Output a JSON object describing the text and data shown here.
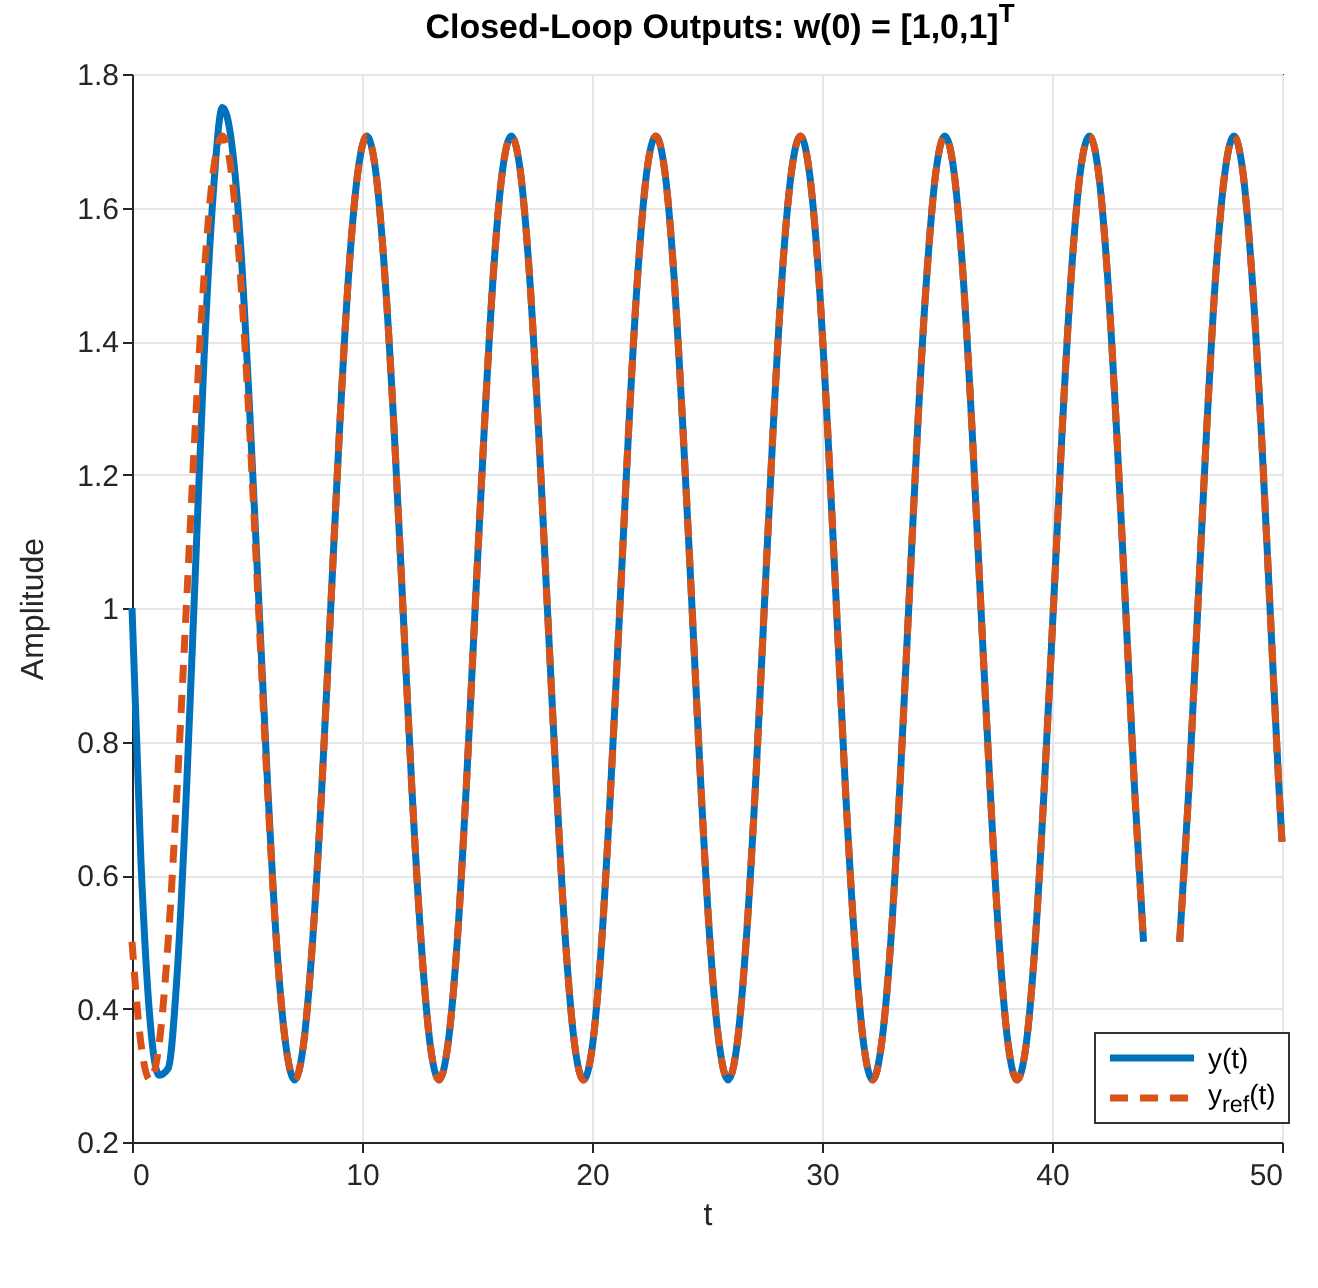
{
  "chart_data": {
    "type": "line",
    "title": "Closed-Loop Outputs: w(0) = [1,0,1]$^{T}$",
    "xlabel": "t",
    "ylabel": "Amplitude",
    "x": [
      0,
      0.39,
      0.79,
      1.18,
      1.57,
      1.96,
      2.36,
      2.75,
      3.14,
      3.53,
      3.93,
      4.32,
      4.71,
      5.11,
      5.5,
      5.89,
      6.28,
      6.68,
      7.07,
      7.46,
      7.85,
      8.25,
      8.64,
      9.03,
      9.42,
      9.82,
      10.21,
      10.6,
      10.99,
      11.39,
      11.78,
      12.17,
      12.57,
      12.96,
      13.35,
      13.74,
      14.14,
      14.53,
      14.92,
      15.32,
      15.71,
      16.1,
      16.49,
      16.89,
      17.28,
      17.67,
      18.06,
      18.46,
      18.85,
      19.24,
      19.63,
      20.03,
      20.42,
      20.81,
      21.21,
      21.6,
      21.99,
      22.38,
      22.78,
      23.17,
      23.56,
      23.95,
      24.35,
      24.74,
      25.13,
      25.53,
      25.92,
      26.31,
      26.7,
      27.1,
      27.49,
      27.88,
      28.27,
      28.67,
      29.06,
      29.45,
      29.85,
      30.24,
      30.63,
      31.02,
      31.42,
      31.81,
      32.2,
      32.59,
      32.99,
      33.38,
      33.77,
      34.16,
      34.56,
      34.95,
      35.34,
      35.74,
      36.13,
      36.52,
      36.91,
      37.31,
      37.7,
      38.09,
      38.48,
      38.88,
      39.27,
      39.66,
      40.06,
      40.45,
      40.84,
      41.23,
      41.63,
      42.02,
      42.41,
      42.8,
      43.2,
      43.59,
      43.98,
      44.37,
      44.77,
      45.16,
      45.55,
      45.95,
      46.34,
      46.73,
      47.12,
      47.52,
      47.91,
      48.3,
      48.69,
      49.09,
      49.48,
      49.87,
      50
    ],
    "series": [
      {
        "name": "y(t)",
        "color": "#0072bd",
        "line_style": "solid",
        "values": [
          1.0,
          0.62,
          0.38,
          0.3,
          0.31,
          0.45,
          0.72,
          1.05,
          1.38,
          1.62,
          1.75,
          1.7,
          1.55,
          1.3,
          1.02,
          0.74,
          0.5,
          0.347,
          0.293,
          0.347,
          0.5,
          0.729,
          1,
          1.271,
          1.5,
          1.653,
          1.707,
          1.653,
          1.5,
          1.271,
          1,
          0.729,
          0.5,
          0.347,
          0.293,
          0.347,
          0.5,
          0.729,
          1,
          1.271,
          1.5,
          1.653,
          1.707,
          1.653,
          1.5,
          1.271,
          1,
          0.729,
          0.5,
          0.347,
          0.293,
          0.347,
          0.5,
          0.729,
          1,
          1.271,
          1.5,
          1.653,
          1.707,
          1.653,
          1.5,
          1.271,
          1,
          0.729,
          0.5,
          0.347,
          0.293,
          0.347,
          0.5,
          0.729,
          1,
          1.271,
          1.5,
          1.653,
          1.707,
          1.653,
          1.5,
          1.271,
          1,
          0.729,
          0.5,
          0.347,
          0.293,
          0.347,
          0.5,
          0.729,
          1,
          1.271,
          1.5,
          1.653,
          1.707,
          1.653,
          1.5,
          1.271,
          1,
          0.729,
          0.5,
          0.347,
          0.293,
          0.347,
          0.5,
          0.729,
          1,
          1.271,
          1.5,
          1.653,
          1.707,
          1.653,
          1.5,
          1.271,
          1,
          0.729,
          0.5,
          null,
          null,
          null,
          0.5,
          0.729,
          1,
          1.271,
          1.5,
          1.653,
          1.707,
          1.653,
          1.5,
          1.271,
          1,
          0.729,
          0.65
        ]
      },
      {
        "name": "y$_{ref}$(t)",
        "color": "#d95319",
        "line_style": "dashed",
        "values": [
          0.5,
          0.347,
          0.293,
          0.347,
          0.5,
          0.729,
          1,
          1.271,
          1.5,
          1.653,
          1.707,
          1.653,
          1.5,
          1.271,
          1,
          0.729,
          0.5,
          0.347,
          0.293,
          0.347,
          0.5,
          0.729,
          1,
          1.271,
          1.5,
          1.653,
          1.707,
          1.653,
          1.5,
          1.271,
          1,
          0.729,
          0.5,
          0.347,
          0.293,
          0.347,
          0.5,
          0.729,
          1,
          1.271,
          1.5,
          1.653,
          1.707,
          1.653,
          1.5,
          1.271,
          1,
          0.729,
          0.5,
          0.347,
          0.293,
          0.347,
          0.5,
          0.729,
          1,
          1.271,
          1.5,
          1.653,
          1.707,
          1.653,
          1.5,
          1.271,
          1,
          0.729,
          0.5,
          0.347,
          0.293,
          0.347,
          0.5,
          0.729,
          1,
          1.271,
          1.5,
          1.653,
          1.707,
          1.653,
          1.5,
          1.271,
          1,
          0.729,
          0.5,
          0.347,
          0.293,
          0.347,
          0.5,
          0.729,
          1,
          1.271,
          1.5,
          1.653,
          1.707,
          1.653,
          1.5,
          1.271,
          1,
          0.729,
          0.5,
          0.347,
          0.293,
          0.347,
          0.5,
          0.729,
          1,
          1.271,
          1.5,
          1.653,
          1.707,
          1.653,
          1.5,
          1.271,
          1,
          0.729,
          0.5,
          null,
          null,
          null,
          0.5,
          0.729,
          1,
          1.271,
          1.5,
          1.653,
          1.707,
          1.653,
          1.5,
          1.271,
          1,
          0.729,
          0.65
        ]
      }
    ],
    "xlim": [
      0,
      50
    ],
    "xticks": [
      0,
      10,
      20,
      30,
      40,
      50
    ],
    "ylim": [
      0.2,
      1.8
    ],
    "yticks": [
      0.2,
      0.4,
      0.6,
      0.8,
      1,
      1.2,
      1.4,
      1.6,
      1.8
    ],
    "grid": true,
    "legend": "bottom right"
  }
}
